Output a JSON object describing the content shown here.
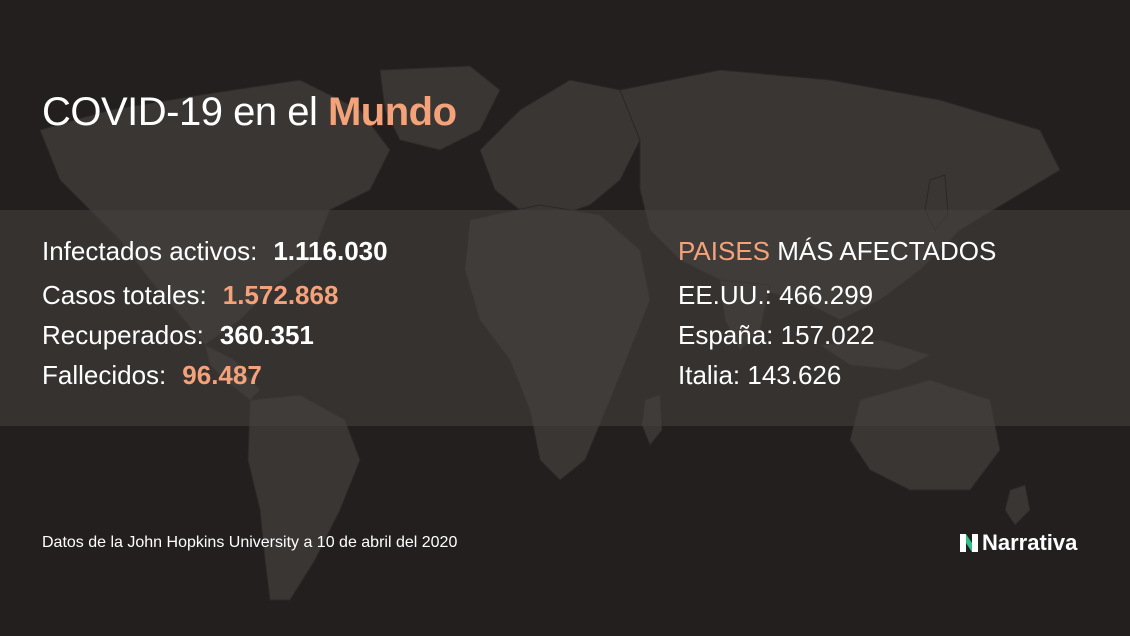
{
  "title": {
    "prefix": "COVID-19 en el ",
    "highlight": "Mundo"
  },
  "stats": [
    {
      "label": "Infectados activos:",
      "value": "1.116.030",
      "value_color": "white"
    },
    {
      "label": "Casos totales:",
      "value": "1.572.868",
      "value_color": "orange"
    },
    {
      "label": "Recuperados:",
      "value": "360.351",
      "value_color": "white"
    },
    {
      "label": "Fallecidos:",
      "value": "96.487",
      "value_color": "orange"
    }
  ],
  "countries": {
    "heading_highlight": "PAISES",
    "heading_rest": " MÁS AFECTADOS",
    "items": [
      {
        "text": "EE.UU.: 466.299"
      },
      {
        "text": "España: 157.022"
      },
      {
        "text": "Italia: 143.626"
      }
    ]
  },
  "footer": {
    "source": "Datos de la John Hopkins University a 10 de abril del 2020"
  },
  "brand": {
    "name": "Narrativa",
    "icon": "narrativa-logo-icon"
  },
  "colors": {
    "background": "#231f1e",
    "accent": "#f4a27a",
    "land": "#3a3634",
    "brand_green": "#2fbf8a"
  }
}
